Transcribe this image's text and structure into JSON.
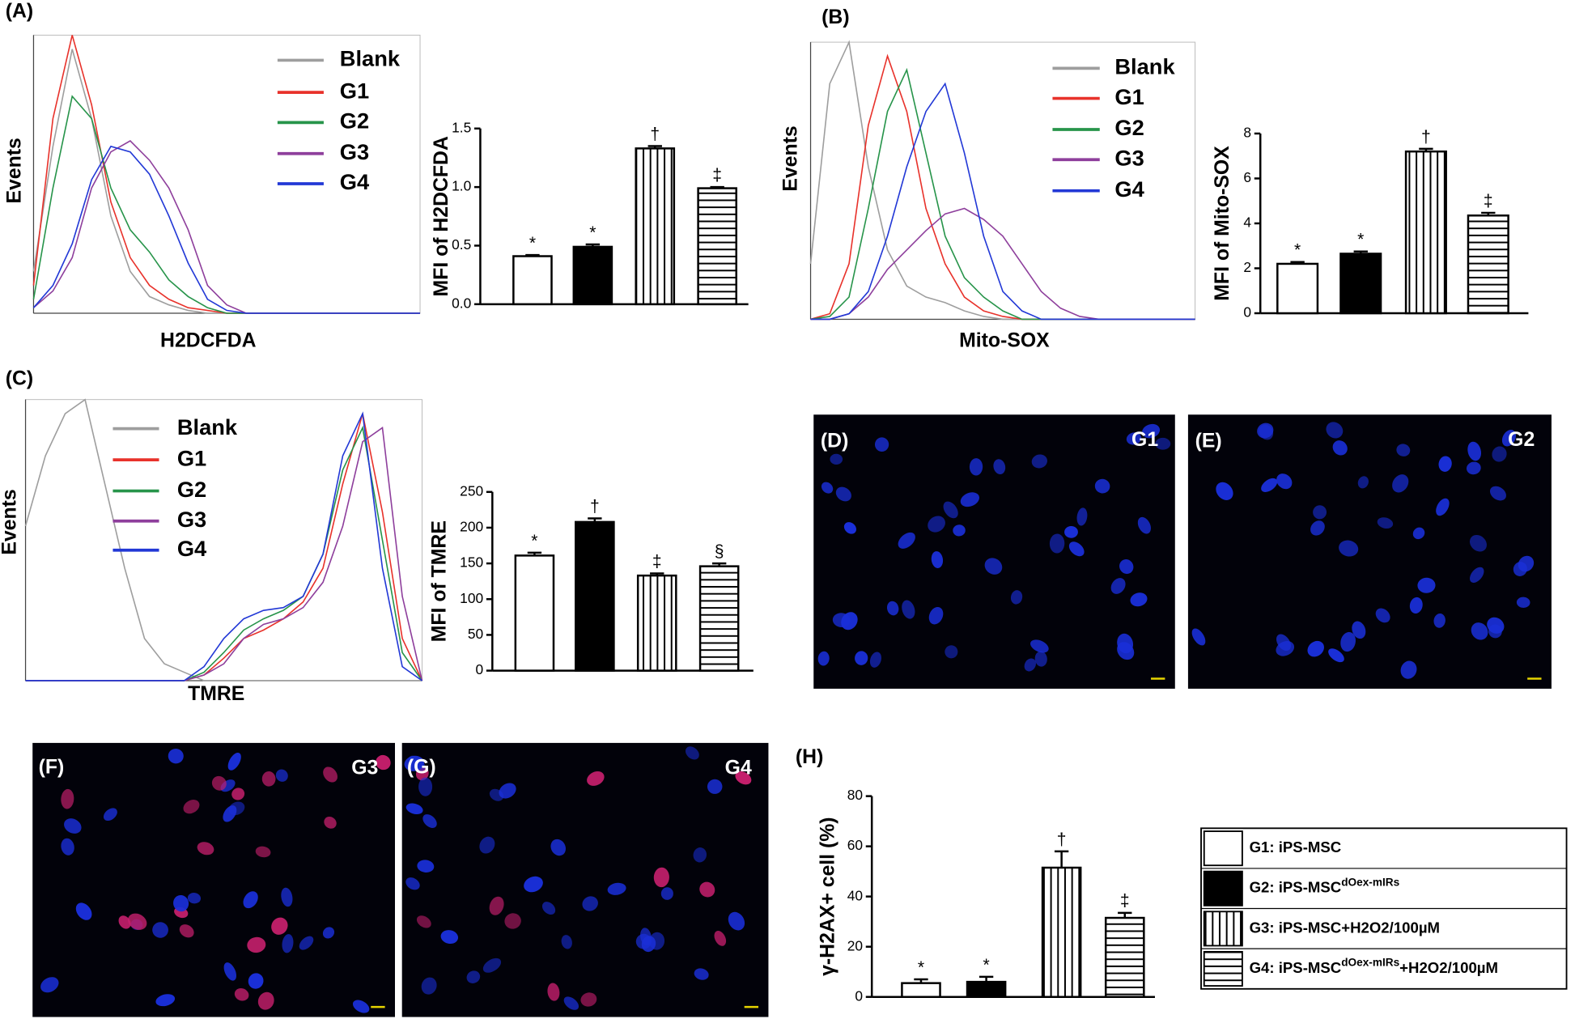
{
  "panel_labels": [
    "(A)",
    "(B)",
    "(C)",
    "(D)",
    "(E)",
    "(F)",
    "(G)",
    "(H)"
  ],
  "images": [
    {
      "label": "G1"
    },
    {
      "label": "G2"
    },
    {
      "label": "G3"
    },
    {
      "label": "G4"
    }
  ],
  "chart_data": [
    {
      "type": "line",
      "x_label": "H2DCFDA",
      "y_label": "Events",
      "x": [
        0,
        5,
        10,
        15,
        20,
        25,
        30,
        35,
        40,
        45,
        50,
        55,
        60,
        65,
        70,
        75,
        80,
        85,
        90,
        95,
        100
      ],
      "xlim": [
        0,
        100
      ],
      "ylim": [
        0,
        100
      ],
      "series": [
        {
          "name": "Blank",
          "color": "#9e9e9e",
          "values": [
            15,
            60,
            95,
            70,
            35,
            15,
            6,
            3,
            1,
            0,
            0,
            0,
            0,
            0,
            0,
            0,
            0,
            0,
            0,
            0,
            0
          ]
        },
        {
          "name": "G1",
          "color": "#e8322b",
          "values": [
            10,
            70,
            100,
            75,
            40,
            20,
            10,
            5,
            2,
            1,
            0,
            0,
            0,
            0,
            0,
            0,
            0,
            0,
            0,
            0,
            0
          ]
        },
        {
          "name": "G2",
          "color": "#27944a",
          "values": [
            5,
            45,
            78,
            70,
            45,
            30,
            22,
            12,
            6,
            2,
            0,
            0,
            0,
            0,
            0,
            0,
            0,
            0,
            0,
            0,
            0
          ]
        },
        {
          "name": "G3",
          "color": "#8e3f9c",
          "values": [
            2,
            8,
            20,
            45,
            58,
            62,
            55,
            45,
            30,
            10,
            3,
            0,
            0,
            0,
            0,
            0,
            0,
            0,
            0,
            0,
            0
          ]
        },
        {
          "name": "G4",
          "color": "#2238d6",
          "values": [
            2,
            10,
            25,
            48,
            60,
            58,
            50,
            35,
            18,
            5,
            1,
            0,
            0,
            0,
            0,
            0,
            0,
            0,
            0,
            0,
            0
          ]
        }
      ]
    },
    {
      "type": "bar",
      "y_label": "MFI of H2DCFDA",
      "categories": [
        null,
        null,
        null,
        null
      ],
      "values": [
        0.41,
        0.49,
        1.33,
        0.99
      ],
      "errors": [
        0.01,
        0.02,
        0.02,
        0.01
      ],
      "significance": [
        "*",
        "*",
        "†",
        "‡"
      ],
      "fills": [
        "white",
        "black",
        "vertical",
        "horizontal"
      ],
      "ylim": [
        0,
        1.5
      ],
      "yticks": [
        {
          "value": 0,
          "label": "0.0"
        },
        0.5,
        {
          "value": 1,
          "label": "1.0"
        },
        1.5
      ]
    },
    {
      "type": "line",
      "x_label": "Mito-SOX",
      "y_label": "Events",
      "x": [
        0,
        5,
        10,
        15,
        20,
        25,
        30,
        35,
        40,
        45,
        50,
        55,
        60,
        65,
        70,
        75,
        80,
        85,
        90,
        95,
        100
      ],
      "xlim": [
        0,
        100
      ],
      "ylim": [
        0,
        100
      ],
      "series": [
        {
          "name": "Blank",
          "color": "#9e9e9e",
          "values": [
            20,
            85,
            100,
            55,
            25,
            12,
            8,
            6,
            3,
            1,
            0,
            0,
            0,
            0,
            0,
            0,
            0,
            0,
            0,
            0,
            0
          ]
        },
        {
          "name": "G1",
          "color": "#e8322b",
          "values": [
            0,
            2,
            20,
            70,
            95,
            75,
            40,
            20,
            8,
            3,
            1,
            0,
            0,
            0,
            0,
            0,
            0,
            0,
            0,
            0,
            0
          ]
        },
        {
          "name": "G2",
          "color": "#27944a",
          "values": [
            0,
            1,
            8,
            40,
            75,
            90,
            60,
            30,
            15,
            8,
            3,
            0,
            0,
            0,
            0,
            0,
            0,
            0,
            0,
            0,
            0
          ]
        },
        {
          "name": "G3",
          "color": "#8e3f9c",
          "values": [
            0,
            0,
            2,
            8,
            18,
            25,
            32,
            38,
            40,
            36,
            30,
            20,
            10,
            4,
            1,
            0,
            0,
            0,
            0,
            0,
            0
          ]
        },
        {
          "name": "G4",
          "color": "#2238d6",
          "values": [
            0,
            0,
            2,
            10,
            30,
            55,
            75,
            85,
            60,
            30,
            10,
            3,
            0,
            0,
            0,
            0,
            0,
            0,
            0,
            0,
            0
          ]
        }
      ]
    },
    {
      "type": "bar",
      "y_label": "MFI of Mito-SOX",
      "categories": [
        null,
        null,
        null,
        null
      ],
      "values": [
        2.2,
        2.65,
        7.2,
        4.35
      ],
      "errors": [
        0.08,
        0.1,
        0.12,
        0.12
      ],
      "significance": [
        "*",
        "*",
        "†",
        "‡"
      ],
      "fills": [
        "white",
        "black",
        "vertical",
        "horizontal"
      ],
      "ylim": [
        0,
        8
      ],
      "yticks": [
        0,
        2,
        4,
        6,
        8
      ]
    },
    {
      "type": "line",
      "x_label": "TMRE",
      "y_label": "Events",
      "x": [
        0,
        5,
        10,
        15,
        20,
        25,
        30,
        35,
        40,
        45,
        50,
        55,
        60,
        65,
        70,
        75,
        80,
        85,
        90,
        95,
        100
      ],
      "xlim": [
        0,
        100
      ],
      "ylim": [
        0,
        100
      ],
      "series": [
        {
          "name": "Blank",
          "color": "#9e9e9e",
          "values": [
            55,
            80,
            95,
            100,
            70,
            40,
            15,
            6,
            3,
            0,
            0,
            0,
            0,
            0,
            0,
            0,
            0,
            0,
            0,
            0,
            0
          ]
        },
        {
          "name": "G1",
          "color": "#e8322b",
          "values": [
            0,
            0,
            0,
            0,
            0,
            0,
            0,
            0,
            0,
            2,
            8,
            15,
            18,
            22,
            28,
            40,
            70,
            95,
            60,
            15,
            0
          ]
        },
        {
          "name": "G2",
          "color": "#27944a",
          "values": [
            0,
            0,
            0,
            0,
            0,
            0,
            0,
            0,
            0,
            3,
            10,
            18,
            22,
            25,
            30,
            45,
            75,
            90,
            50,
            10,
            0
          ]
        },
        {
          "name": "G3",
          "color": "#8e3f9c",
          "values": [
            0,
            0,
            0,
            0,
            0,
            0,
            0,
            0,
            0,
            2,
            6,
            15,
            20,
            22,
            26,
            35,
            55,
            85,
            90,
            30,
            0
          ]
        },
        {
          "name": "G4",
          "color": "#2238d6",
          "values": [
            0,
            0,
            0,
            0,
            0,
            0,
            0,
            0,
            0,
            5,
            15,
            22,
            25,
            26,
            30,
            45,
            80,
            95,
            40,
            5,
            0
          ]
        }
      ]
    },
    {
      "type": "bar",
      "y_label": "MFI of TMRE",
      "categories": [
        null,
        null,
        null,
        null
      ],
      "values": [
        161,
        208,
        133,
        146
      ],
      "errors": [
        4,
        5,
        3,
        4
      ],
      "significance": [
        "*",
        "†",
        "‡",
        "§"
      ],
      "fills": [
        "white",
        "black",
        "vertical",
        "horizontal"
      ],
      "ylim": [
        0,
        250
      ],
      "yticks": [
        0,
        50,
        100,
        150,
        200,
        250
      ]
    },
    {
      "type": "bar",
      "y_label": "γ-H2AX+ cell (%)",
      "categories": [
        null,
        null,
        null,
        null
      ],
      "values": [
        5.5,
        6,
        51.5,
        31.5
      ],
      "errors": [
        1.5,
        2,
        6.5,
        2
      ],
      "significance": [
        "*",
        "*",
        "†",
        "‡"
      ],
      "fills": [
        "white",
        "black",
        "vertical",
        "horizontal"
      ],
      "ylim": [
        0,
        80
      ],
      "yticks": [
        0,
        20,
        40,
        60,
        80
      ],
      "legend": [
        {
          "text": "G1: iPS-MSC"
        },
        {
          "text": "G2: iPS-MSC",
          "sup": "dOex-mIRs"
        },
        {
          "text": "G3: iPS-MSC+H2O2/100µM"
        },
        {
          "text": "G4: iPS-MSC",
          "sup": "dOex-mIRs",
          "after": "+H2O2/100µM"
        }
      ]
    }
  ]
}
